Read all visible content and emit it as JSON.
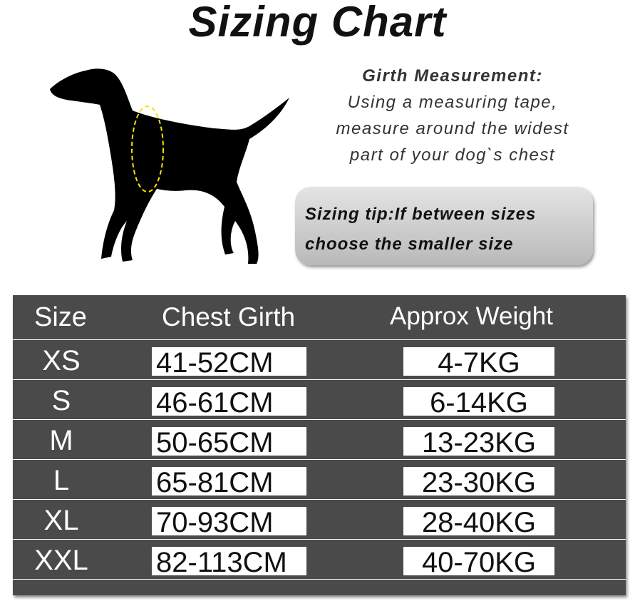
{
  "title": "Sizing Chart",
  "girth": {
    "heading": "Girth Measurement:",
    "lines": [
      "Using a measuring tape,",
      "measure around the widest",
      "part of your dog`s chest"
    ]
  },
  "tip": {
    "lines": [
      "Sizing tip:If between sizes",
      "choose the smaller size"
    ]
  },
  "table": {
    "headers": [
      "Size",
      "Chest Girth",
      "Approx Weight"
    ],
    "rows": [
      {
        "size": "XS",
        "chest": "41-52CM",
        "weight": "4-7KG"
      },
      {
        "size": "S",
        "chest": "46-61CM",
        "weight": "6-14KG"
      },
      {
        "size": "M",
        "chest": "50-65CM",
        "weight": "13-23KG"
      },
      {
        "size": "L",
        "chest": "65-81CM",
        "weight": "23-30KG"
      },
      {
        "size": "XL",
        "chest": "70-93CM",
        "weight": "28-40KG"
      },
      {
        "size": "XXL",
        "chest": "82-113CM",
        "weight": "40-70KG"
      }
    ]
  },
  "colors": {
    "table_bg": "#4a4a4a",
    "girth_marker": "#f5e400"
  }
}
